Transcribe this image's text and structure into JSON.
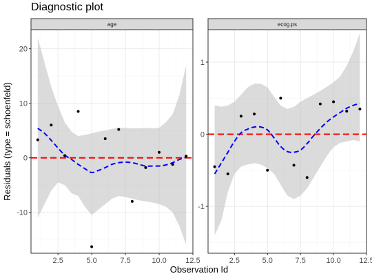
{
  "title": "Diagnostic plot",
  "chart_data": {
    "type": "scatter",
    "title": "Diagnostic plot",
    "xlabel": "Observation Id",
    "ylabel": "Residuals (type = schoenfeld)",
    "reference_line": 0,
    "colors": {
      "points": "#000000",
      "smooth": "#0000ff",
      "reference": "#ff0000",
      "band": "#bebebe",
      "strip": "#d9d9d9"
    },
    "panels": [
      {
        "strip_label": "age",
        "xlim": [
          0.5,
          12.5
        ],
        "ylim": [
          -17.5,
          23.5
        ],
        "x_ticks": [
          2.5,
          5,
          7.5,
          10,
          12.5
        ],
        "x_tick_labels": [
          "2.5",
          "5.0",
          "7.5",
          "10.0",
          "12.5"
        ],
        "y_ticks": [
          -10,
          0,
          10,
          20
        ],
        "y_tick_labels": [
          "-10",
          "0",
          "10",
          "20"
        ],
        "points": {
          "x": [
            1,
            2,
            3,
            4,
            5,
            6,
            7,
            8,
            9,
            10,
            11,
            12
          ],
          "y": [
            3.3,
            6.0,
            0.4,
            8.5,
            -16.3,
            3.5,
            5.2,
            -8.0,
            -1.8,
            1.0,
            -1.2,
            0.3
          ]
        },
        "smooth": {
          "x": [
            1,
            1.5,
            2,
            2.5,
            3,
            3.5,
            4,
            4.5,
            5,
            5.5,
            6,
            6.5,
            7,
            7.5,
            8,
            8.5,
            9,
            9.5,
            10,
            10.5,
            11,
            11.5,
            12
          ],
          "y": [
            5.4,
            4.5,
            3.2,
            1.8,
            0.5,
            -0.3,
            -1.2,
            -2.0,
            -2.7,
            -2.3,
            -1.8,
            -1.2,
            -0.9,
            -0.8,
            -0.9,
            -1.2,
            -1.5,
            -1.5,
            -1.5,
            -1.3,
            -0.9,
            -0.3,
            0.1
          ],
          "lower": [
            -11.0,
            -8.5,
            -6.0,
            -4.5,
            -5.0,
            -6.5,
            -7.0,
            -9.0,
            -10.5,
            -9.5,
            -8.5,
            -7.5,
            -7.0,
            -7.2,
            -7.5,
            -7.8,
            -8.0,
            -8.2,
            -8.5,
            -9.0,
            -10.0,
            -12.5,
            -16.0
          ],
          "upper": [
            22.0,
            17.5,
            13.0,
            9.5,
            6.5,
            4.8,
            4.0,
            4.2,
            4.5,
            4.8,
            5.0,
            5.3,
            5.5,
            5.5,
            5.4,
            5.4,
            5.5,
            5.4,
            5.5,
            6.5,
            8.0,
            11.5,
            17.0
          ]
        }
      },
      {
        "strip_label": "ecog.ps",
        "xlim": [
          0.5,
          12.5
        ],
        "ylim": [
          -1.65,
          1.45
        ],
        "x_ticks": [
          2.5,
          5,
          7.5,
          10,
          12.5
        ],
        "x_tick_labels": [
          "2.5",
          "5.0",
          "7.5",
          "10.0",
          "12.5"
        ],
        "y_ticks": [
          -1,
          0,
          1
        ],
        "y_tick_labels": [
          "-1",
          "0",
          "1"
        ],
        "points": {
          "x": [
            1,
            2,
            3,
            4,
            5,
            6,
            7,
            8,
            9,
            10,
            11,
            12
          ],
          "y": [
            -0.45,
            -0.55,
            0.25,
            0.28,
            -0.5,
            0.5,
            -0.43,
            -0.6,
            0.42,
            0.45,
            0.32,
            0.35
          ]
        },
        "smooth": {
          "x": [
            1,
            1.5,
            2,
            2.5,
            3,
            3.5,
            4,
            4.5,
            5,
            5.5,
            6,
            6.5,
            7,
            7.5,
            8,
            8.5,
            9,
            9.5,
            10,
            10.5,
            11,
            11.5,
            12
          ],
          "y": [
            -0.55,
            -0.4,
            -0.25,
            -0.1,
            0.02,
            0.07,
            0.1,
            0.1,
            0.06,
            -0.05,
            -0.17,
            -0.24,
            -0.25,
            -0.22,
            -0.13,
            -0.02,
            0.08,
            0.17,
            0.24,
            0.3,
            0.36,
            0.4,
            0.43
          ],
          "lower": [
            -1.4,
            -1.2,
            -0.8,
            -0.55,
            -0.45,
            -0.42,
            -0.4,
            -0.42,
            -0.47,
            -0.55,
            -0.7,
            -0.85,
            -0.9,
            -0.85,
            -0.75,
            -0.6,
            -0.45,
            -0.3,
            -0.18,
            -0.12,
            -0.1,
            -0.08,
            -0.1
          ],
          "upper": [
            0.4,
            0.38,
            0.4,
            0.45,
            0.55,
            0.65,
            0.7,
            0.7,
            0.65,
            0.52,
            0.4,
            0.35,
            0.38,
            0.45,
            0.5,
            0.55,
            0.6,
            0.66,
            0.72,
            0.8,
            0.95,
            1.15,
            1.4
          ]
        }
      }
    ]
  }
}
